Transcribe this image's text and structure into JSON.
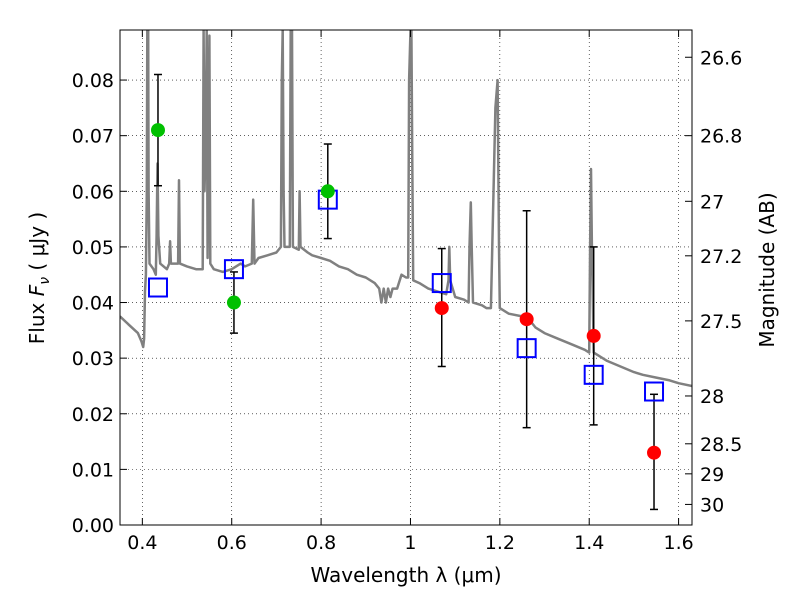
{
  "chart_data": {
    "type": "scatter",
    "xlabel": "Wavelength  λ (μm)",
    "ylabel_prefix": "Flux  ",
    "ylabel_symbol": "F",
    "ylabel_sub": "ν",
    "ylabel_suffix": "  ( μJy )",
    "y2label": "Magnitude (AB)",
    "xlim": [
      0.35,
      1.63
    ],
    "ylim": [
      0.0,
      0.089
    ],
    "x_ticks": [
      0.4,
      0.6,
      0.8,
      1.0,
      1.2,
      1.4,
      1.6
    ],
    "x_tick_labels": [
      "0.4",
      "0.6",
      "0.8",
      "1",
      "1.2",
      "1.4",
      "1.6"
    ],
    "y_ticks": [
      0.0,
      0.01,
      0.02,
      0.03,
      0.04,
      0.05,
      0.06,
      0.07,
      0.08
    ],
    "y_tick_labels": [
      "0.00",
      "0.01",
      "0.02",
      "0.03",
      "0.04",
      "0.05",
      "0.06",
      "0.07",
      "0.08"
    ],
    "y2_ticks": [
      {
        "label": "26.6",
        "flux": 0.0841
      },
      {
        "label": "26.8",
        "flux": 0.07
      },
      {
        "label": "27",
        "flux": 0.0582
      },
      {
        "label": "27.2",
        "flux": 0.0484
      },
      {
        "label": "27.5",
        "flux": 0.0367
      },
      {
        "label": "28",
        "flux": 0.0232
      },
      {
        "label": "28.5",
        "flux": 0.0146
      },
      {
        "label": "29",
        "flux": 0.0092
      },
      {
        "label": "30",
        "flux": 0.0037
      }
    ],
    "grid": true,
    "colors": {
      "model": "#808080",
      "green": "#00c000",
      "red": "#ff0000",
      "box": "#0000ff",
      "errbar": "#000000"
    },
    "model_spectrum": [
      [
        0.35,
        0.0375
      ],
      [
        0.37,
        0.036
      ],
      [
        0.39,
        0.0345
      ],
      [
        0.398,
        0.033
      ],
      [
        0.402,
        0.032
      ],
      [
        0.404,
        0.0335
      ],
      [
        0.406,
        0.042
      ],
      [
        0.408,
        0.045
      ],
      [
        0.41,
        0.06
      ],
      [
        0.411,
        0.089
      ],
      [
        0.413,
        0.089
      ],
      [
        0.414,
        0.06
      ],
      [
        0.416,
        0.047
      ],
      [
        0.425,
        0.046
      ],
      [
        0.43,
        0.045
      ],
      [
        0.432,
        0.052
      ],
      [
        0.434,
        0.065
      ],
      [
        0.436,
        0.052
      ],
      [
        0.44,
        0.047
      ],
      [
        0.455,
        0.046
      ],
      [
        0.46,
        0.047
      ],
      [
        0.462,
        0.051
      ],
      [
        0.464,
        0.047
      ],
      [
        0.48,
        0.047
      ],
      [
        0.482,
        0.062
      ],
      [
        0.484,
        0.047
      ],
      [
        0.5,
        0.0465
      ],
      [
        0.52,
        0.046
      ],
      [
        0.535,
        0.046
      ],
      [
        0.537,
        0.089
      ],
      [
        0.539,
        0.06
      ],
      [
        0.542,
        0.07
      ],
      [
        0.544,
        0.089
      ],
      [
        0.546,
        0.048
      ],
      [
        0.548,
        0.071
      ],
      [
        0.55,
        0.088
      ],
      [
        0.552,
        0.047
      ],
      [
        0.56,
        0.046
      ],
      [
        0.58,
        0.0455
      ],
      [
        0.6,
        0.046
      ],
      [
        0.62,
        0.047
      ],
      [
        0.63,
        0.0465
      ],
      [
        0.645,
        0.047
      ],
      [
        0.648,
        0.0585
      ],
      [
        0.651,
        0.047
      ],
      [
        0.66,
        0.048
      ],
      [
        0.68,
        0.0485
      ],
      [
        0.7,
        0.049
      ],
      [
        0.71,
        0.05
      ],
      [
        0.712,
        0.08
      ],
      [
        0.714,
        0.089
      ],
      [
        0.716,
        0.06
      ],
      [
        0.718,
        0.05
      ],
      [
        0.73,
        0.05
      ],
      [
        0.732,
        0.089
      ],
      [
        0.735,
        0.089
      ],
      [
        0.737,
        0.05
      ],
      [
        0.75,
        0.0495
      ],
      [
        0.752,
        0.06
      ],
      [
        0.754,
        0.05
      ],
      [
        0.77,
        0.049
      ],
      [
        0.78,
        0.0485
      ],
      [
        0.8,
        0.048
      ],
      [
        0.82,
        0.0475
      ],
      [
        0.84,
        0.0465
      ],
      [
        0.86,
        0.046
      ],
      [
        0.88,
        0.045
      ],
      [
        0.9,
        0.0445
      ],
      [
        0.92,
        0.0435
      ],
      [
        0.93,
        0.0425
      ],
      [
        0.935,
        0.04
      ],
      [
        0.94,
        0.0425
      ],
      [
        0.945,
        0.04
      ],
      [
        0.95,
        0.0425
      ],
      [
        0.955,
        0.041
      ],
      [
        0.96,
        0.0425
      ],
      [
        0.97,
        0.0425
      ],
      [
        0.98,
        0.045
      ],
      [
        0.99,
        0.0445
      ],
      [
        0.995,
        0.0445
      ],
      [
        0.997,
        0.08
      ],
      [
        1.0,
        0.089
      ],
      [
        1.002,
        0.089
      ],
      [
        1.004,
        0.065
      ],
      [
        1.006,
        0.044
      ],
      [
        1.02,
        0.0435
      ],
      [
        1.04,
        0.0425
      ],
      [
        1.06,
        0.042
      ],
      [
        1.08,
        0.0415
      ],
      [
        1.085,
        0.044
      ],
      [
        1.087,
        0.05
      ],
      [
        1.089,
        0.044
      ],
      [
        1.1,
        0.041
      ],
      [
        1.12,
        0.0405
      ],
      [
        1.13,
        0.04
      ],
      [
        1.132,
        0.05
      ],
      [
        1.135,
        0.058
      ],
      [
        1.137,
        0.05
      ],
      [
        1.14,
        0.04
      ],
      [
        1.16,
        0.0395
      ],
      [
        1.17,
        0.039
      ],
      [
        1.18,
        0.039
      ],
      [
        1.19,
        0.075
      ],
      [
        1.195,
        0.08
      ],
      [
        1.198,
        0.05
      ],
      [
        1.2,
        0.039
      ],
      [
        1.22,
        0.038
      ],
      [
        1.25,
        0.0375
      ],
      [
        1.27,
        0.0365
      ],
      [
        1.28,
        0.0355
      ],
      [
        1.3,
        0.0345
      ],
      [
        1.33,
        0.0335
      ],
      [
        1.36,
        0.0325
      ],
      [
        1.39,
        0.0315
      ],
      [
        1.4,
        0.031
      ],
      [
        1.402,
        0.05
      ],
      [
        1.404,
        0.064
      ],
      [
        1.406,
        0.05
      ],
      [
        1.41,
        0.031
      ],
      [
        1.44,
        0.0295
      ],
      [
        1.47,
        0.0285
      ],
      [
        1.5,
        0.0275
      ],
      [
        1.52,
        0.027
      ],
      [
        1.55,
        0.0265
      ],
      [
        1.58,
        0.026
      ],
      [
        1.6,
        0.0255
      ],
      [
        1.63,
        0.025
      ]
    ],
    "green_points": [
      {
        "x": 0.435,
        "y": 0.071,
        "err_lo": 0.061,
        "err_hi": 0.081
      },
      {
        "x": 0.605,
        "y": 0.04,
        "err_lo": 0.0345,
        "err_hi": 0.0455
      },
      {
        "x": 0.815,
        "y": 0.06,
        "err_lo": 0.0515,
        "err_hi": 0.0685
      }
    ],
    "red_points": [
      {
        "x": 1.07,
        "y": 0.039,
        "err_lo": 0.0285,
        "err_hi": 0.0497
      },
      {
        "x": 1.26,
        "y": 0.037,
        "err_lo": 0.0175,
        "err_hi": 0.0565
      },
      {
        "x": 1.41,
        "y": 0.034,
        "err_lo": 0.018,
        "err_hi": 0.05
      },
      {
        "x": 1.545,
        "y": 0.013,
        "err_lo": 0.0028,
        "err_hi": 0.0235
      }
    ],
    "model_boxes": [
      {
        "x": 0.435,
        "y": 0.0427
      },
      {
        "x": 0.605,
        "y": 0.046
      },
      {
        "x": 0.815,
        "y": 0.0585
      },
      {
        "x": 1.07,
        "y": 0.0435
      },
      {
        "x": 1.26,
        "y": 0.0318
      },
      {
        "x": 1.41,
        "y": 0.027
      },
      {
        "x": 1.545,
        "y": 0.024
      }
    ]
  }
}
